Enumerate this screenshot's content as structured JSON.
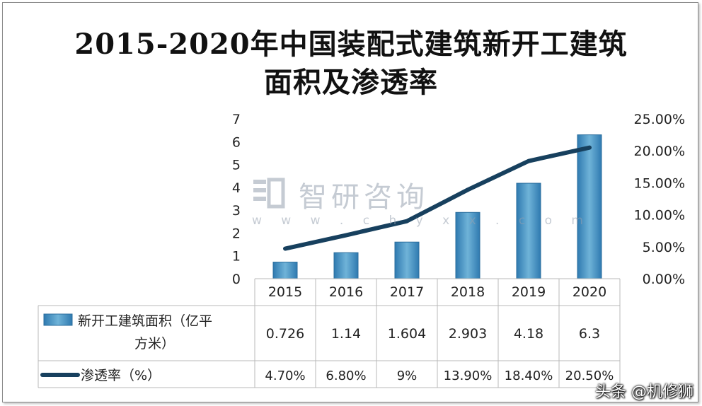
{
  "chart_data": {
    "type": "bar",
    "title_line1": "2015-2020年中国装配式建筑新开工建筑",
    "title_line2": "面积及渗透率",
    "categories": [
      "2015",
      "2016",
      "2017",
      "2018",
      "2019",
      "2020"
    ],
    "series": [
      {
        "name": "新开工建筑面积（亿平方米）",
        "name_line1": "新开工建筑面积（亿平",
        "name_line2": "方米）",
        "type": "bar",
        "axis": "left",
        "values": [
          0.726,
          1.14,
          1.604,
          2.903,
          4.18,
          6.3
        ],
        "table_labels": [
          "0.726",
          "1.14",
          "1.604",
          "2.903",
          "4.18",
          "6.3"
        ],
        "color": "#4f9ac4"
      },
      {
        "name": "渗透率（%）",
        "type": "line",
        "axis": "right",
        "values": [
          4.7,
          6.8,
          9,
          13.9,
          18.4,
          20.5
        ],
        "table_labels": [
          "4.70%",
          "6.80%",
          "9%",
          "13.90%",
          "18.40%",
          "20.50%"
        ],
        "color": "#17405e"
      }
    ],
    "y_left": {
      "min": 0,
      "max": 7,
      "ticks": [
        "0",
        "1",
        "2",
        "3",
        "4",
        "5",
        "6",
        "7"
      ]
    },
    "y_right": {
      "min": 0,
      "max": 25,
      "ticks": [
        "0.00%",
        "5.00%",
        "10.00%",
        "15.00%",
        "20.00%",
        "25.00%"
      ]
    },
    "grid": false,
    "legend": "data-table"
  },
  "watermark": {
    "text": "智研咨询",
    "url": "w w w . c h y x x . c o m"
  },
  "credit": "头条 @机修狮"
}
